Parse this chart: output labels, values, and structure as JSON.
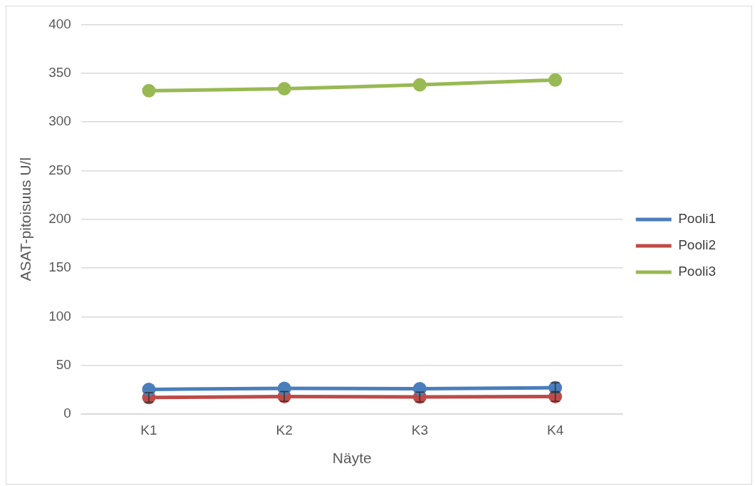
{
  "chart_data": {
    "type": "line",
    "xlabel": "Näyte",
    "ylabel": "ASAT-pitoisuus U/l",
    "categories": [
      "K1",
      "K2",
      "K3",
      "K4"
    ],
    "series": [
      {
        "name": "Pooli1",
        "color": "#4a7ebb",
        "values": [
          25.3,
          26.4,
          26,
          27
        ],
        "errors": [
          null,
          null,
          null,
          5
        ]
      },
      {
        "name": "Pooli2",
        "color": "#be4b48",
        "values": [
          17,
          18,
          17.5,
          18
        ],
        "errors": [
          5,
          5,
          5,
          5
        ]
      },
      {
        "name": "Pooli3",
        "color": "#98b954",
        "values": [
          332,
          334,
          338,
          343
        ]
      }
    ],
    "ylim": [
      0,
      400
    ],
    "yticks": [
      0,
      50,
      100,
      150,
      200,
      250,
      300,
      350,
      400
    ],
    "grid": "y",
    "legend": "right",
    "marker": "circle",
    "line_style": "solid"
  }
}
